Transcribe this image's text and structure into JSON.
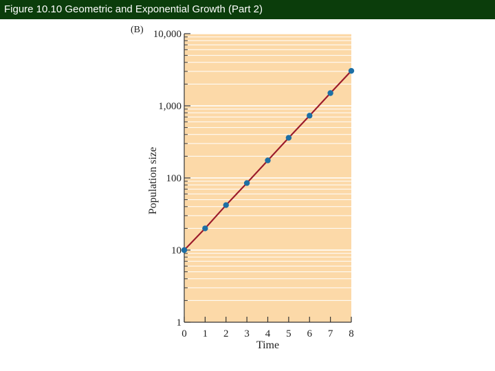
{
  "header": {
    "title": "Figure 10.10  Geometric and Exponential Growth (Part 2)"
  },
  "chart_data": {
    "type": "line",
    "panel_label": "(B)",
    "title": "",
    "xlabel": "Time",
    "ylabel": "Population size",
    "y_scale": "log",
    "xlim": [
      0,
      8
    ],
    "ylim": [
      1,
      10000
    ],
    "x_ticks": [
      "0",
      "1",
      "2",
      "3",
      "4",
      "5",
      "6",
      "7",
      "8"
    ],
    "y_ticks": [
      {
        "value": 1,
        "label": "1"
      },
      {
        "value": 10,
        "label": "10"
      },
      {
        "value": 100,
        "label": "100"
      },
      {
        "value": 1000,
        "label": "1,000"
      },
      {
        "value": 10000,
        "label": "10,000"
      }
    ],
    "grid": true,
    "series": [
      {
        "x": [
          0,
          1,
          2,
          3,
          4,
          5,
          6,
          7,
          8
        ],
        "y": [
          10,
          20,
          42,
          85,
          175,
          360,
          730,
          1500,
          3050
        ]
      }
    ],
    "colors": {
      "background": "#fcd9a8",
      "grid": "#ffffff",
      "line": "#9b1b2b",
      "marker": "#1d6fa5",
      "header": "#0b3d0b"
    }
  }
}
